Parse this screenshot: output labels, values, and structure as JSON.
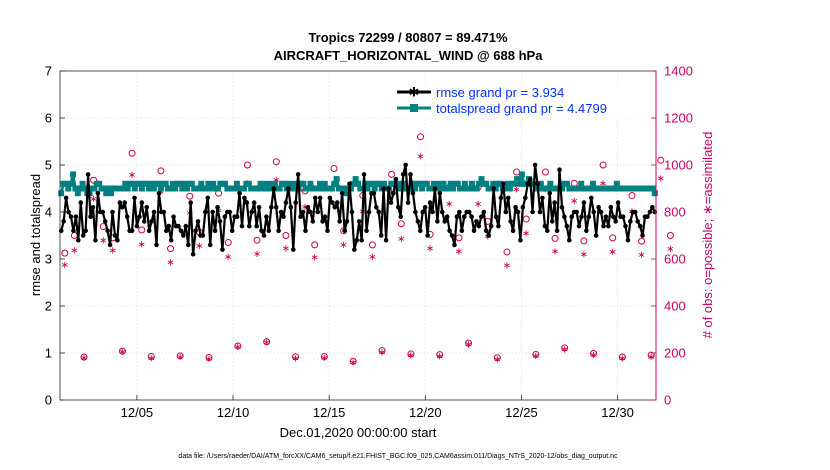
{
  "chart_data": {
    "type": "line",
    "title_line1": "Tropics 72299 / 80807 = 89.471%",
    "title_line2": "AIRCRAFT_HORIZONTAL_WIND @ 688 hPa",
    "ylabel_left": "rmse and totalspread",
    "ylabel_right": "# of obs: o=possible; ∗=assimilated",
    "xlabel": "Dec.01,2020 00:00:00 start",
    "footnote": "data file: /Users/raeder/DAI/ATM_forcXX/CAM6_setup/f.e21.FHIST_BGC.f09_025.CAM6assim.011/Diags_NTrS_2020-12/obs_diag_output.nc",
    "x_range_days": [
      0,
      31
    ],
    "ylim_left": [
      0,
      7
    ],
    "ylim_right": [
      0,
      1400
    ],
    "left_ticks": [
      "0",
      "1",
      "2",
      "3",
      "4",
      "5",
      "6",
      "7"
    ],
    "right_ticks": [
      "0",
      "200",
      "400",
      "600",
      "800",
      "1000",
      "1200",
      "1400"
    ],
    "x_ticks": [
      {
        "day": 4,
        "label": "12/05"
      },
      {
        "day": 9,
        "label": "12/10"
      },
      {
        "day": 14,
        "label": "12/15"
      },
      {
        "day": 19,
        "label": "12/20"
      },
      {
        "day": 24,
        "label": "12/25"
      },
      {
        "day": 29,
        "label": "12/30"
      }
    ],
    "grid": true,
    "legend_position": "top-right",
    "colors": {
      "rmse": "#000000",
      "spread": "#008080",
      "obs": "#cc0044",
      "right_axis": "#cc0066",
      "legend_text": "#0033ff"
    },
    "series": [
      {
        "name": "rmse grand pr = 3.934",
        "key": "rmse",
        "values": [
          3.6,
          3.8,
          4.3,
          4.0,
          3.9,
          3.6,
          3.9,
          3.4,
          4.2,
          3.5,
          3.6,
          4.8,
          3.9,
          4.1,
          3.4,
          4.4,
          4.0,
          4.0,
          3.8,
          3.6,
          3.3,
          4.0,
          3.5,
          3.4,
          4.2,
          4.1,
          4.2,
          3.9,
          3.6,
          3.6,
          4.3,
          3.7,
          3.9,
          4.2,
          3.8,
          4.1,
          3.6,
          3.8,
          4.0,
          3.3,
          4.4,
          4.0,
          4.0,
          3.6,
          3.7,
          3.4,
          3.9,
          3.7,
          3.7,
          3.6,
          3.5,
          3.7,
          3.3,
          4.2,
          3.1,
          3.6,
          3.8,
          3.5,
          3.5,
          4.0,
          4.3,
          3.3,
          4.0,
          3.6,
          4.1,
          3.8,
          3.2,
          3.9,
          4.0,
          4.0,
          3.6,
          3.9,
          3.9,
          4.4,
          3.7,
          4.3,
          4.2,
          3.7,
          4.0,
          4.2,
          3.7,
          4.1,
          3.6,
          3.5,
          3.9,
          3.6,
          4.1,
          4.5,
          4.1,
          3.6,
          4.0,
          3.9,
          4.2,
          4.5,
          4.1,
          3.2,
          4.2,
          4.8,
          3.9,
          4.0,
          3.6,
          4.1,
          4.0,
          3.8,
          4.3,
          4.0,
          4.3,
          3.8,
          3.9,
          3.6,
          4.3,
          4.2,
          4.1,
          4.2,
          3.8,
          4.4,
          3.6,
          3.8,
          4.6,
          4.0,
          3.2,
          3.4,
          3.8,
          3.4,
          4.8,
          3.6,
          4.0,
          4.4,
          4.4,
          4.1,
          4.0,
          3.5,
          4.5,
          3.4,
          4.5,
          4.2,
          4.4,
          4.7,
          4.1,
          3.9,
          4.8,
          5.0,
          4.2,
          4.8,
          4.4,
          4.0,
          3.8,
          3.6,
          4.0,
          4.1,
          3.5,
          4.2,
          4.0,
          4.5,
          3.8,
          4.4,
          4.0,
          3.8,
          3.9,
          3.6,
          3.5,
          3.3,
          3.9,
          4.0,
          3.6,
          3.9,
          4.0,
          4.0,
          3.9,
          3.6,
          3.8,
          3.7,
          3.9,
          4.0,
          3.6,
          3.5,
          3.7,
          4.5,
          3.9,
          3.7,
          4.3,
          4.6,
          4.0,
          4.3,
          3.8,
          3.6,
          4.1,
          4.0,
          3.4,
          4.1,
          4.3,
          4.6,
          4.7,
          4.0,
          5.0,
          4.6,
          4.0,
          4.3,
          3.7,
          3.6,
          4.4,
          3.8,
          4.2,
          3.6,
          4.9,
          4.1,
          3.9,
          3.7,
          3.4,
          3.9,
          4.0,
          4.0,
          3.7,
          3.9,
          4.2,
          3.6,
          3.9,
          4.3,
          4.0,
          3.5,
          4.1,
          4.0,
          3.7,
          3.9,
          3.7,
          4.1,
          3.9,
          3.8,
          4.2,
          3.9,
          3.9,
          3.7,
          3.4,
          3.8,
          4.0,
          4.0,
          3.8,
          3.7,
          3.5,
          3.9,
          3.9,
          4.0,
          4.1,
          4.0
        ]
      },
      {
        "name": "totalspread grand pr = 4.4799",
        "key": "spread",
        "values": [
          4.4,
          4.6,
          4.6,
          4.5,
          4.6,
          4.8,
          4.5,
          4.4,
          4.5,
          4.6,
          4.5,
          4.4,
          4.4,
          4.5,
          4.5,
          4.6,
          4.6,
          4.5,
          4.5,
          4.4,
          4.5,
          4.4,
          4.5,
          4.5,
          4.5,
          4.5,
          4.5,
          4.6,
          4.5,
          4.6,
          4.6,
          4.5,
          4.6,
          4.6,
          4.5,
          4.6,
          4.6,
          4.5,
          4.6,
          4.5,
          4.6,
          4.6,
          4.5,
          4.6,
          4.6,
          4.5,
          4.5,
          4.6,
          4.5,
          4.6,
          4.6,
          4.5,
          4.6,
          4.5,
          4.6,
          4.6,
          4.5,
          4.5,
          4.5,
          4.6,
          4.5,
          4.5,
          4.6,
          4.5,
          4.6,
          4.5,
          4.5,
          4.6,
          4.6,
          4.6,
          4.5,
          4.5,
          4.5,
          4.5,
          4.6,
          4.5,
          4.5,
          4.5,
          4.6,
          4.6,
          4.5,
          4.5,
          4.5,
          4.5,
          4.6,
          4.5,
          4.6,
          4.5,
          4.6,
          4.5,
          4.6,
          4.5,
          4.5,
          4.6,
          4.6,
          4.5,
          4.6,
          4.5,
          4.6,
          4.5,
          4.5,
          4.6,
          4.6,
          4.5,
          4.5,
          4.6,
          4.5,
          4.5,
          4.5,
          4.6,
          4.5,
          4.6,
          4.5,
          4.5,
          4.5,
          4.6,
          4.7,
          4.5,
          4.5,
          4.5,
          4.4,
          4.5,
          4.5,
          4.6,
          4.7,
          4.6,
          4.5,
          4.5,
          4.6,
          4.5,
          4.6,
          4.6,
          4.5,
          4.6,
          4.6,
          4.5,
          4.6,
          4.5,
          4.5,
          4.6,
          4.6,
          4.6,
          4.5,
          4.6,
          4.6,
          4.5,
          4.5,
          4.5,
          4.6,
          4.5,
          4.6,
          4.6,
          4.5,
          4.6,
          4.6,
          4.5,
          4.5,
          4.6,
          4.5,
          4.6,
          4.5,
          4.6,
          4.5,
          4.5,
          4.6,
          4.5,
          4.6,
          4.6,
          4.5,
          4.5,
          4.6,
          4.5,
          4.5,
          4.6,
          4.5,
          4.5,
          4.6,
          4.7,
          4.6,
          4.6,
          4.5,
          4.5,
          4.6,
          4.5,
          4.6,
          4.6,
          4.5,
          4.5,
          4.6,
          4.5,
          4.6,
          4.6,
          4.7,
          4.6,
          4.8,
          4.6,
          4.6,
          4.7,
          4.6,
          4.6,
          4.5,
          4.5,
          4.6,
          4.5,
          4.5,
          4.5,
          4.6,
          4.5,
          4.5,
          4.5,
          4.5,
          4.5,
          4.6,
          4.6,
          4.5,
          4.5,
          4.5,
          4.5,
          4.5,
          4.6,
          4.5,
          4.5,
          4.5,
          4.5,
          4.6,
          4.5,
          4.5,
          4.5,
          4.5,
          4.5,
          4.5,
          4.5,
          4.5,
          4.5,
          4.6,
          4.5,
          4.5,
          4.5,
          4.5,
          4.5,
          4.5,
          4.5,
          4.5,
          4.5,
          4.5,
          4.5,
          4.5,
          4.5,
          4.5,
          4.5,
          4.4
        ]
      }
    ],
    "obs_possible": [
      [
        0.25,
        625
      ],
      [
        0.75,
        700
      ],
      [
        1.25,
        183
      ],
      [
        1.75,
        935
      ],
      [
        2.25,
        738
      ],
      [
        2.75,
        690
      ],
      [
        3.25,
        208
      ],
      [
        3.75,
        1050
      ],
      [
        4.25,
        724
      ],
      [
        4.75,
        185
      ],
      [
        5.25,
        975
      ],
      [
        5.75,
        644
      ],
      [
        6.25,
        188
      ],
      [
        6.75,
        867
      ],
      [
        7.25,
        715
      ],
      [
        7.75,
        181
      ],
      [
        8.25,
        880
      ],
      [
        8.75,
        670
      ],
      [
        9.25,
        230
      ],
      [
        9.75,
        1000
      ],
      [
        10.25,
        680
      ],
      [
        10.75,
        248
      ],
      [
        11.25,
        1014
      ],
      [
        11.75,
        700
      ],
      [
        12.25,
        184
      ],
      [
        12.75,
        890
      ],
      [
        13.25,
        660
      ],
      [
        13.75,
        185
      ],
      [
        14.25,
        985
      ],
      [
        14.75,
        720
      ],
      [
        15.25,
        165
      ],
      [
        15.75,
        870
      ],
      [
        16.25,
        660
      ],
      [
        16.75,
        210
      ],
      [
        17.25,
        960
      ],
      [
        17.75,
        750
      ],
      [
        18.25,
        196
      ],
      [
        18.75,
        1120
      ],
      [
        19.25,
        705
      ],
      [
        19.75,
        193
      ],
      [
        20.25,
        905
      ],
      [
        20.75,
        690
      ],
      [
        21.25,
        242
      ],
      [
        21.75,
        905
      ],
      [
        22.25,
        760
      ],
      [
        22.75,
        180
      ],
      [
        23.25,
        630
      ],
      [
        23.75,
        970
      ],
      [
        24.25,
        770
      ],
      [
        24.75,
        194
      ],
      [
        25.25,
        970
      ],
      [
        25.75,
        688
      ],
      [
        26.25,
        222
      ],
      [
        26.75,
        922
      ],
      [
        27.25,
        677
      ],
      [
        27.75,
        198
      ],
      [
        28.25,
        1000
      ],
      [
        28.75,
        690
      ],
      [
        29.25,
        183
      ],
      [
        29.75,
        870
      ],
      [
        30.25,
        676
      ],
      [
        30.75,
        191
      ],
      [
        31.25,
        1020
      ],
      [
        31.75,
        700
      ]
    ],
    "obs_assimilated": [
      [
        0.25,
        578
      ],
      [
        0.75,
        640
      ],
      [
        1.25,
        183
      ],
      [
        1.75,
        860
      ],
      [
        2.25,
        682
      ],
      [
        2.75,
        640
      ],
      [
        3.25,
        208
      ],
      [
        3.75,
        962
      ],
      [
        4.25,
        666
      ],
      [
        4.75,
        180
      ],
      [
        5.25,
        890
      ],
      [
        5.75,
        590
      ],
      [
        6.25,
        188
      ],
      [
        6.75,
        800
      ],
      [
        7.25,
        660
      ],
      [
        7.75,
        178
      ],
      [
        8.25,
        810
      ],
      [
        8.75,
        612
      ],
      [
        9.25,
        230
      ],
      [
        9.75,
        926
      ],
      [
        10.25,
        626
      ],
      [
        10.75,
        248
      ],
      [
        11.25,
        940
      ],
      [
        11.75,
        648
      ],
      [
        12.25,
        180
      ],
      [
        12.75,
        826
      ],
      [
        13.25,
        610
      ],
      [
        13.75,
        183
      ],
      [
        14.25,
        914
      ],
      [
        14.75,
        664
      ],
      [
        15.25,
        164
      ],
      [
        15.75,
        806
      ],
      [
        16.25,
        612
      ],
      [
        16.75,
        206
      ],
      [
        17.25,
        890
      ],
      [
        17.75,
        690
      ],
      [
        18.25,
        193
      ],
      [
        18.75,
        1040
      ],
      [
        19.25,
        650
      ],
      [
        19.75,
        190
      ],
      [
        20.25,
        838
      ],
      [
        20.75,
        636
      ],
      [
        21.25,
        240
      ],
      [
        21.75,
        838
      ],
      [
        22.25,
        700
      ],
      [
        22.75,
        176
      ],
      [
        23.25,
        576
      ],
      [
        23.75,
        900
      ],
      [
        24.25,
        712
      ],
      [
        24.75,
        191
      ],
      [
        25.25,
        900
      ],
      [
        25.75,
        636
      ],
      [
        26.25,
        220
      ],
      [
        26.75,
        852
      ],
      [
        27.25,
        624
      ],
      [
        27.75,
        196
      ],
      [
        28.25,
        926
      ],
      [
        28.75,
        634
      ],
      [
        29.25,
        181
      ],
      [
        29.75,
        806
      ],
      [
        30.25,
        622
      ],
      [
        30.75,
        188
      ],
      [
        31.25,
        946
      ],
      [
        31.75,
        646
      ]
    ]
  }
}
